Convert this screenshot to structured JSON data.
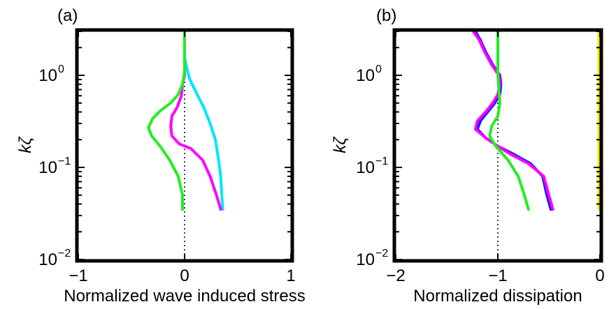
{
  "chart_data": [
    {
      "type": "line",
      "panel_label": "(a)",
      "xlabel": "Normalized wave induced stress",
      "ylabel": "kζ",
      "xlim": [
        -1,
        1
      ],
      "ylim": [
        0.01,
        3
      ],
      "yscale": "log",
      "xticks": [
        -1,
        0,
        1
      ],
      "xtick_labels": [
        "−1",
        "0",
        "1"
      ],
      "yticks": [
        {
          "value": 0.01,
          "base": "10",
          "exp": "−2"
        },
        {
          "value": 0.1,
          "base": "10",
          "exp": "−1"
        },
        {
          "value": 1,
          "base": "10",
          "exp": "0"
        }
      ],
      "grid": false,
      "reference_line": {
        "x": 0,
        "style": "dotted"
      },
      "series": [
        {
          "color": "#00e5ff",
          "points": [
            [
              0.36,
              0.035
            ],
            [
              0.35,
              0.05
            ],
            [
              0.34,
              0.08
            ],
            [
              0.32,
              0.12
            ],
            [
              0.29,
              0.2
            ],
            [
              0.24,
              0.3
            ],
            [
              0.18,
              0.45
            ],
            [
              0.11,
              0.65
            ],
            [
              0.05,
              0.9
            ],
            [
              0.02,
              1.2
            ],
            [
              0.0,
              1.6
            ],
            [
              0.0,
              3.0
            ]
          ]
        },
        {
          "color": "#ff00ff",
          "points": [
            [
              0.34,
              0.035
            ],
            [
              0.3,
              0.05
            ],
            [
              0.24,
              0.08
            ],
            [
              0.17,
              0.12
            ],
            [
              0.06,
              0.16
            ],
            [
              -0.05,
              0.18
            ],
            [
              -0.12,
              0.22
            ],
            [
              -0.13,
              0.28
            ],
            [
              -0.12,
              0.36
            ],
            [
              -0.07,
              0.45
            ],
            [
              -0.03,
              0.6
            ],
            [
              -0.02,
              0.8
            ],
            [
              0.0,
              1.0
            ],
            [
              0.0,
              1.3
            ]
          ]
        },
        {
          "color": "#22ee22",
          "points": [
            [
              -0.02,
              0.035
            ],
            [
              -0.02,
              0.05
            ],
            [
              -0.06,
              0.08
            ],
            [
              -0.14,
              0.12
            ],
            [
              -0.23,
              0.17
            ],
            [
              -0.31,
              0.22
            ],
            [
              -0.34,
              0.27
            ],
            [
              -0.3,
              0.34
            ],
            [
              -0.22,
              0.42
            ],
            [
              -0.13,
              0.5
            ],
            [
              -0.06,
              0.62
            ],
            [
              -0.02,
              0.8
            ],
            [
              0.0,
              1.1
            ],
            [
              0.0,
              1.6
            ],
            [
              0.0,
              3.0
            ]
          ]
        }
      ]
    },
    {
      "type": "line",
      "panel_label": "(b)",
      "xlabel": "Normalized dissipation",
      "ylabel": "kζ",
      "xlim": [
        -2,
        0
      ],
      "ylim": [
        0.01,
        3
      ],
      "yscale": "log",
      "xticks": [
        -2,
        -1,
        0
      ],
      "xtick_labels": [
        "−2",
        "−1",
        "0"
      ],
      "yticks": [
        {
          "value": 0.01,
          "base": "10",
          "exp": "−2"
        },
        {
          "value": 0.1,
          "base": "10",
          "exp": "−1"
        },
        {
          "value": 1,
          "base": "10",
          "exp": "0"
        }
      ],
      "grid": false,
      "reference_line": {
        "x": -1,
        "style": "dotted"
      },
      "series": [
        {
          "color": "#ffe600",
          "points": [
            [
              -0.01,
              0.035
            ],
            [
              -0.01,
              3.0
            ]
          ]
        },
        {
          "color": "#1a1aff",
          "points": [
            [
              -0.48,
              0.035
            ],
            [
              -0.52,
              0.05
            ],
            [
              -0.56,
              0.08
            ],
            [
              -0.68,
              0.11
            ],
            [
              -0.85,
              0.14
            ],
            [
              -1.0,
              0.17
            ],
            [
              -1.12,
              0.21
            ],
            [
              -1.2,
              0.26
            ],
            [
              -1.17,
              0.32
            ],
            [
              -1.1,
              0.4
            ],
            [
              -1.03,
              0.5
            ],
            [
              -0.98,
              0.62
            ],
            [
              -0.97,
              0.8
            ],
            [
              -0.98,
              1.0
            ],
            [
              -1.05,
              1.3
            ],
            [
              -1.12,
              1.8
            ],
            [
              -1.17,
              2.4
            ],
            [
              -1.22,
              3.0
            ]
          ]
        },
        {
          "color": "#ff00ff",
          "points": [
            [
              -0.46,
              0.035
            ],
            [
              -0.5,
              0.05
            ],
            [
              -0.55,
              0.08
            ],
            [
              -0.7,
              0.11
            ],
            [
              -0.88,
              0.14
            ],
            [
              -1.0,
              0.17
            ],
            [
              -1.12,
              0.21
            ],
            [
              -1.22,
              0.26
            ],
            [
              -1.2,
              0.32
            ],
            [
              -1.12,
              0.4
            ],
            [
              -1.05,
              0.5
            ],
            [
              -1.0,
              0.62
            ],
            [
              -0.98,
              0.8
            ],
            [
              -0.99,
              1.0
            ],
            [
              -1.06,
              1.3
            ],
            [
              -1.13,
              1.8
            ],
            [
              -1.18,
              2.4
            ],
            [
              -1.24,
              3.0
            ]
          ]
        },
        {
          "color": "#22ee22",
          "points": [
            [
              -0.7,
              0.035
            ],
            [
              -0.74,
              0.05
            ],
            [
              -0.8,
              0.08
            ],
            [
              -0.9,
              0.12
            ],
            [
              -1.02,
              0.17
            ],
            [
              -1.08,
              0.22
            ],
            [
              -1.06,
              0.28
            ],
            [
              -1.0,
              0.36
            ],
            [
              -0.98,
              0.5
            ],
            [
              -0.99,
              0.7
            ],
            [
              -1.0,
              1.0
            ],
            [
              -1.0,
              3.0
            ]
          ]
        }
      ]
    }
  ]
}
